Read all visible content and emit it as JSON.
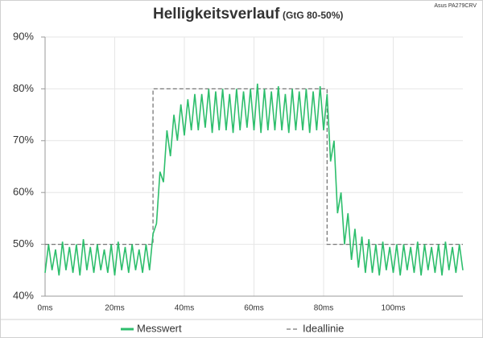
{
  "chart_data": {
    "type": "line",
    "title": "Helligkeitsverlauf",
    "subtitle": "(GtG 80-50%)",
    "source": "Asus PA279CRV",
    "xlim": [
      0,
      120
    ],
    "xticks": [
      {
        "value": 0,
        "label": "0ms"
      },
      {
        "value": 20,
        "label": "20ms"
      },
      {
        "value": 40,
        "label": "40ms"
      },
      {
        "value": 60,
        "label": "60ms"
      },
      {
        "value": 80,
        "label": "80ms"
      },
      {
        "value": 100,
        "label": "100ms"
      }
    ],
    "ylim": [
      40,
      90
    ],
    "yticks": [
      {
        "value": 40,
        "label": "40%"
      },
      {
        "value": 50,
        "label": "50%"
      },
      {
        "value": 60,
        "label": "60%"
      },
      {
        "value": 70,
        "label": "70%"
      },
      {
        "value": 80,
        "label": "80%"
      },
      {
        "value": 90,
        "label": "90%"
      }
    ],
    "grid": true,
    "legend": "bottom",
    "series": [
      {
        "name": "Messwert",
        "color": "#2dbe6c",
        "dashed": false,
        "x": [
          0,
          1,
          2,
          3,
          4,
          5,
          6,
          7,
          8,
          9,
          10,
          11,
          12,
          13,
          14,
          15,
          16,
          17,
          18,
          19,
          20,
          21,
          22,
          23,
          24,
          25,
          26,
          27,
          28,
          29,
          30,
          31,
          32,
          33,
          34,
          35,
          36,
          37,
          38,
          39,
          40,
          41,
          42,
          43,
          44,
          45,
          46,
          47,
          48,
          49,
          50,
          51,
          52,
          53,
          54,
          55,
          56,
          57,
          58,
          59,
          60,
          61,
          62,
          63,
          64,
          65,
          66,
          67,
          68,
          69,
          70,
          71,
          72,
          73,
          74,
          75,
          76,
          77,
          78,
          79,
          80,
          81,
          82,
          83,
          84,
          85,
          86,
          87,
          88,
          89,
          90,
          91,
          92,
          93,
          94,
          95,
          96,
          97,
          98,
          99,
          100,
          101,
          102,
          103,
          104,
          105,
          106,
          107,
          108,
          109,
          110,
          111,
          112,
          113,
          114,
          115,
          116,
          117,
          118,
          119,
          120
        ],
        "values": [
          44.5,
          50,
          45,
          49,
          44,
          50.5,
          45,
          49.5,
          44.5,
          50,
          44,
          51,
          45,
          49.5,
          44.5,
          50,
          45,
          49,
          44.5,
          50,
          44,
          50.5,
          45,
          49.5,
          44.5,
          50,
          45,
          49,
          44.5,
          50,
          45,
          52,
          54,
          64,
          62,
          72,
          67,
          75,
          70,
          77,
          71,
          78,
          72,
          79,
          72,
          79,
          72.5,
          80,
          71.5,
          79.5,
          72,
          80,
          72,
          79,
          71.5,
          80,
          72,
          79.5,
          72.5,
          80,
          72,
          81,
          71.5,
          80,
          72,
          79.5,
          72,
          80.5,
          72,
          79,
          71.5,
          80,
          72,
          79.5,
          72,
          80,
          71.5,
          79.5,
          72,
          80.5,
          72,
          79,
          66,
          70,
          56,
          60,
          50,
          56,
          47,
          53,
          45.5,
          51.5,
          44.5,
          51,
          44.5,
          50,
          44,
          50.5,
          45,
          49.5,
          44.5,
          50,
          44,
          50,
          45,
          49.5,
          44.5,
          50.5,
          44,
          50,
          45,
          49.5,
          44.5,
          50,
          44,
          50.5,
          45,
          49.5,
          44.5,
          50,
          45
        ]
      },
      {
        "name": "Ideallinie",
        "color": "#777777",
        "dashed": true,
        "x": [
          0,
          31,
          31,
          81,
          81,
          120
        ],
        "values": [
          50,
          50,
          80,
          80,
          50,
          50
        ]
      }
    ]
  }
}
